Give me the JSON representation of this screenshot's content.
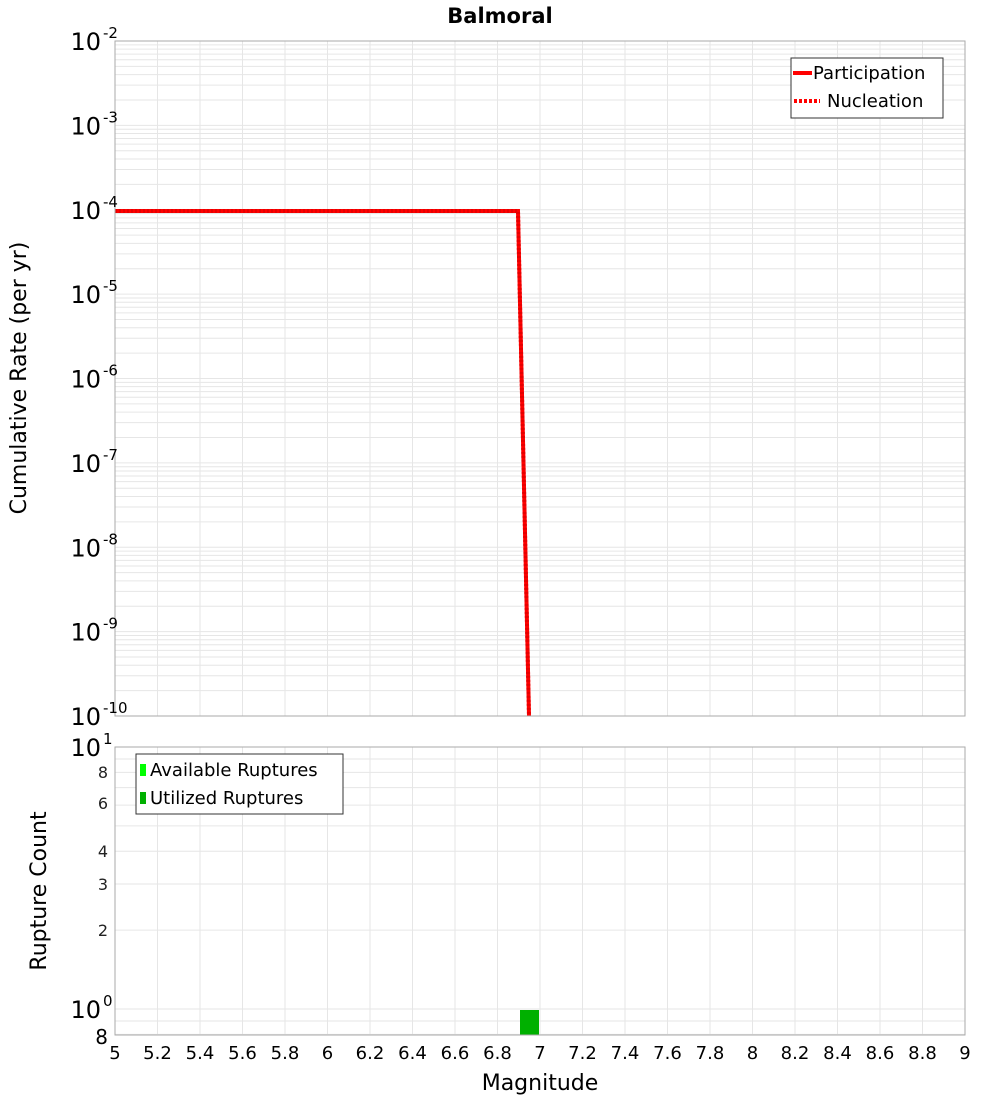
{
  "chart_data": [
    {
      "type": "line",
      "title": "Balmoral",
      "xlabel": "Magnitude",
      "ylabel": "Cumulative Rate (per yr)",
      "xlim": [
        5,
        9
      ],
      "ylim": [
        1e-10,
        0.01
      ],
      "yscale": "log",
      "grid": true,
      "legend_position": "upper right",
      "x_ticks": [
        "5",
        "5.2",
        "5.4",
        "5.6",
        "5.8",
        "6",
        "6.2",
        "6.4",
        "6.6",
        "6.8",
        "7",
        "7.2",
        "7.4",
        "7.6",
        "7.8",
        "8",
        "8.2",
        "8.4",
        "8.6",
        "8.8",
        "9"
      ],
      "y_ticks": [
        "10^-2",
        "10^-3",
        "10^-4",
        "10^-5",
        "10^-6",
        "10^-7",
        "10^-8",
        "10^-9",
        "10^-10"
      ],
      "series": [
        {
          "name": "Participation",
          "style": "solid",
          "color": "#ff0000",
          "x": [
            5.0,
            6.9,
            6.95
          ],
          "y": [
            9.6e-05,
            9.6e-05,
            1e-10
          ]
        },
        {
          "name": "Nucleation",
          "style": "dotted",
          "color": "#ff0000",
          "x": [
            5.0,
            6.9,
            6.95
          ],
          "y": [
            9.6e-05,
            9.6e-05,
            1e-10
          ]
        }
      ]
    },
    {
      "type": "bar",
      "xlabel": "Magnitude",
      "ylabel": "Rupture Count",
      "xlim": [
        5,
        9
      ],
      "ylim": [
        0.8,
        10
      ],
      "yscale": "log",
      "grid": true,
      "legend_position": "upper left",
      "y_ticks": [
        "8",
        "10^0",
        "2",
        "3",
        "4",
        "6",
        "8",
        "10^1"
      ],
      "series": [
        {
          "name": "Available Ruptures",
          "color": "#00ff00",
          "bins": [],
          "values": []
        },
        {
          "name": "Utilized Ruptures",
          "color": "#00b000",
          "bins": [
            [
              6.9,
              7.0
            ]
          ],
          "values": [
            1
          ]
        }
      ]
    }
  ],
  "title": "Balmoral",
  "top_chart": {
    "ylabel": "Cumulative Rate (per yr)",
    "y_ticks": [
      {
        "base": "10",
        "exp": "-2"
      },
      {
        "base": "10",
        "exp": "-3"
      },
      {
        "base": "10",
        "exp": "-4"
      },
      {
        "base": "10",
        "exp": "-5"
      },
      {
        "base": "10",
        "exp": "-6"
      },
      {
        "base": "10",
        "exp": "-7"
      },
      {
        "base": "10",
        "exp": "-8"
      },
      {
        "base": "10",
        "exp": "-9"
      },
      {
        "base": "10",
        "exp": "-10"
      }
    ],
    "legend": [
      {
        "label": "Participation",
        "color": "#ff0000",
        "style": "solid"
      },
      {
        "label": "Nucleation",
        "color": "#ff0000",
        "style": "dotted"
      }
    ]
  },
  "bottom_chart": {
    "ylabel": "Rupture Count",
    "xlabel": "Magnitude",
    "legend": [
      {
        "label": "Available Ruptures",
        "color": "#00ff00"
      },
      {
        "label": "Utilized Ruptures",
        "color": "#00b000"
      }
    ],
    "y_minor_labels": [
      "8",
      "6",
      "4",
      "3",
      "2"
    ],
    "y_top": {
      "base": "10",
      "exp": "1"
    },
    "y_mid": {
      "base": "10",
      "exp": "0"
    },
    "y_bottom": "8"
  },
  "x_ticks": [
    "5",
    "5.2",
    "5.4",
    "5.6",
    "5.8",
    "6",
    "6.2",
    "6.4",
    "6.6",
    "6.8",
    "7",
    "7.2",
    "7.4",
    "7.6",
    "7.8",
    "8",
    "8.2",
    "8.4",
    "8.6",
    "8.8",
    "9"
  ],
  "colors": {
    "line": "#ff0000",
    "available": "#00ff00",
    "utilized": "#00b000"
  }
}
